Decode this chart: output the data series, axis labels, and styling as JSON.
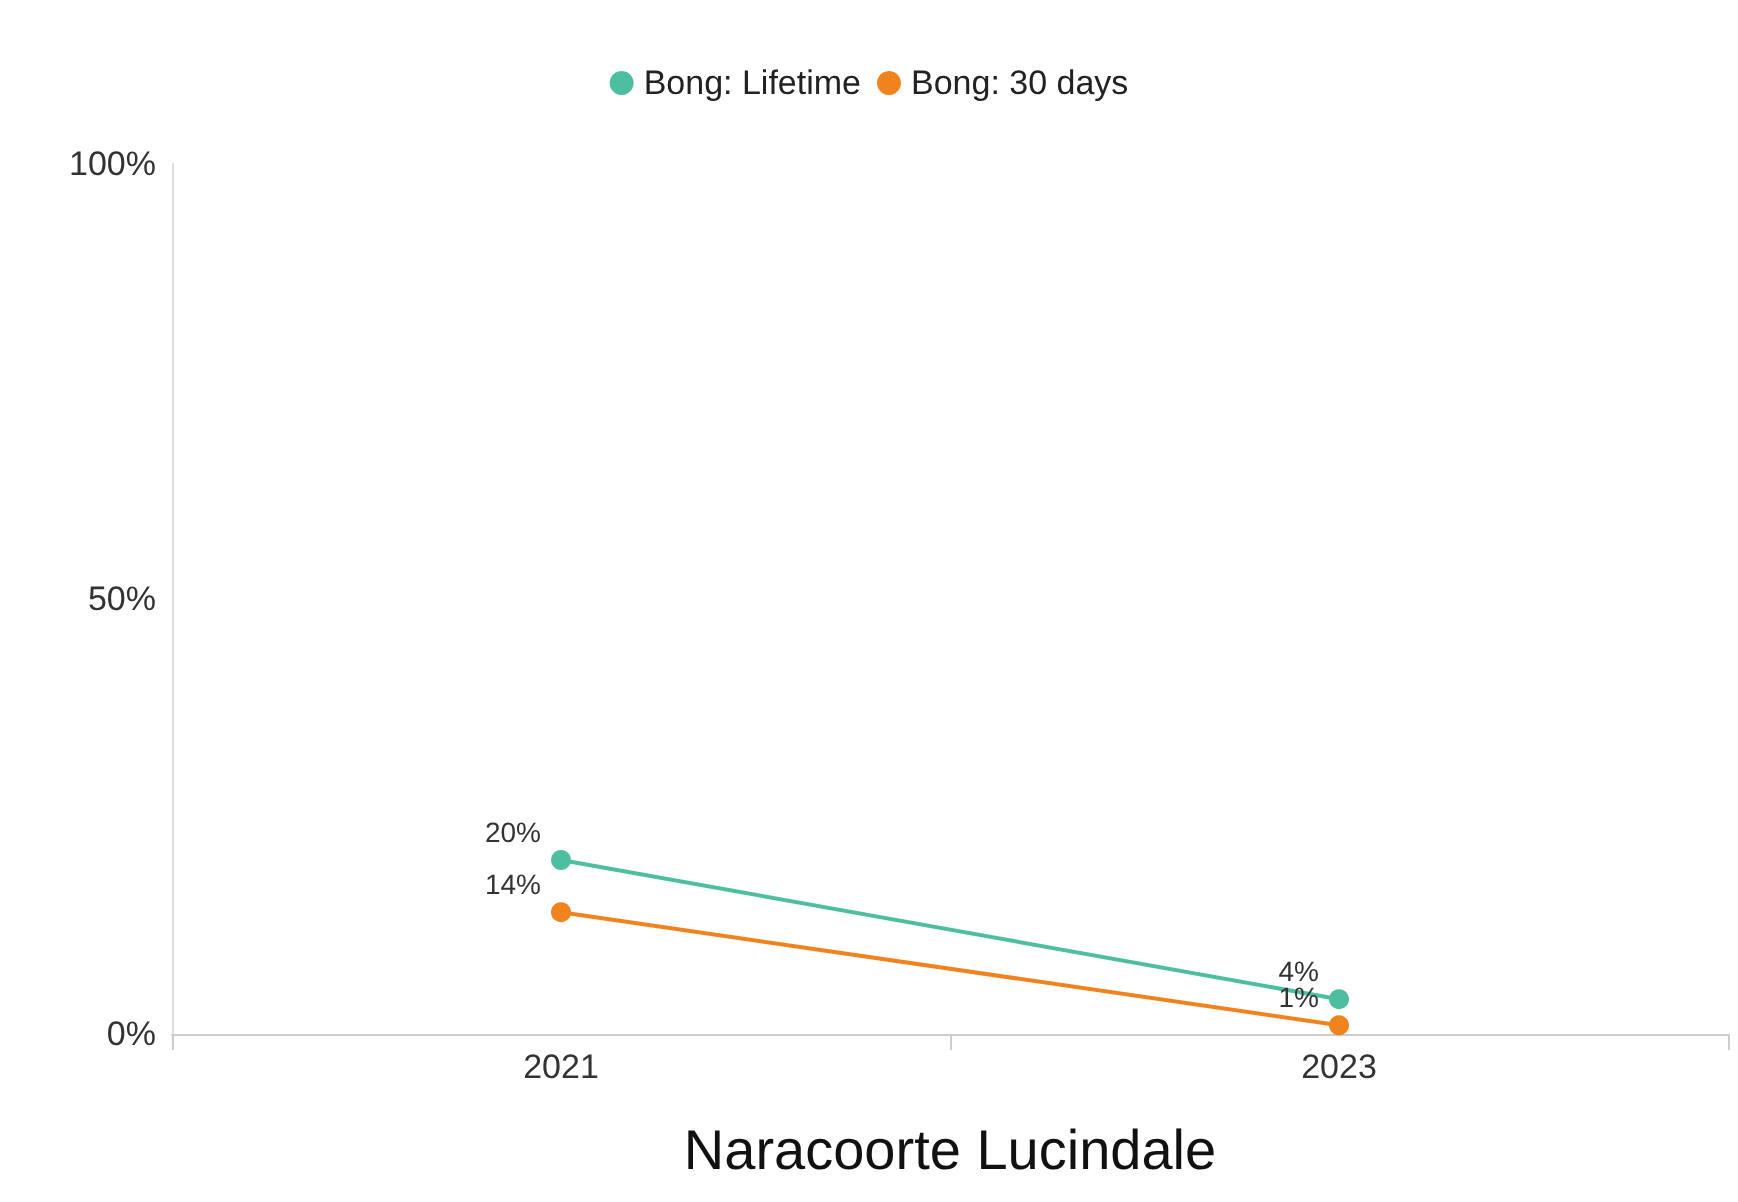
{
  "chart_data": {
    "type": "line",
    "xlabel": "Naracoorte Lucindale",
    "categories": [
      "2021",
      "2023"
    ],
    "series": [
      {
        "name": "Bong: Lifetime",
        "color": "#4dbfa0",
        "values": [
          20,
          4
        ],
        "value_labels": [
          "20%",
          "4%"
        ]
      },
      {
        "name": "Bong: 30 days",
        "color": "#f0831e",
        "values": [
          14,
          1
        ],
        "value_labels": [
          "14%",
          "1%"
        ]
      }
    ],
    "ylim": [
      0,
      100
    ],
    "yticks": [
      {
        "value": 0,
        "label": "0%"
      },
      {
        "value": 50,
        "label": "50%"
      },
      {
        "value": 100,
        "label": "100%"
      }
    ],
    "grid": false,
    "legend": "top",
    "marker": "circle",
    "line_style": "solid"
  }
}
